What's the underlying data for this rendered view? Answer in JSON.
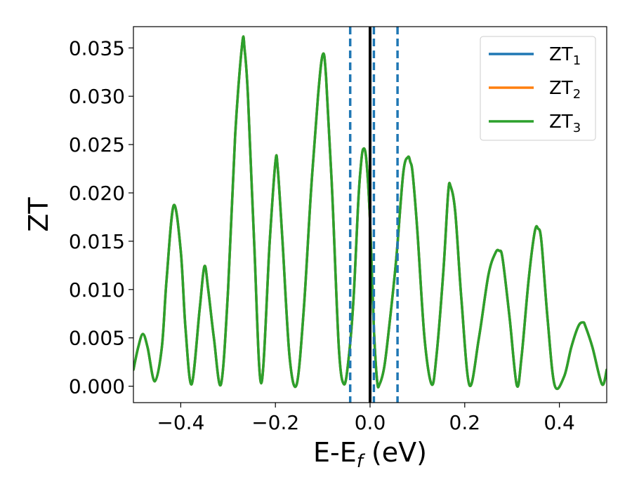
{
  "chart_data": {
    "type": "line",
    "ylabel": "ZT",
    "xlabel": {
      "main": "E-E",
      "sub": "f",
      "unit": " (eV)"
    },
    "xlim": [
      -0.5,
      0.5
    ],
    "ylim": [
      -0.0017,
      0.0372
    ],
    "x_ticks": [
      -0.4,
      -0.2,
      0.0,
      0.2,
      0.4
    ],
    "x_tick_labels": [
      "−0.4",
      "−0.2",
      "0.0",
      "0.2",
      "0.4"
    ],
    "y_ticks": [
      0.0,
      0.005,
      0.01,
      0.015,
      0.02,
      0.025,
      0.03,
      0.035
    ],
    "y_tick_labels": [
      "0.000",
      "0.005",
      "0.010",
      "0.015",
      "0.020",
      "0.025",
      "0.030",
      "0.035"
    ],
    "grid": false,
    "legend_position": "top-right",
    "series": [
      {
        "label_main": "ZT",
        "label_sub": "1",
        "color": "#1f77b4"
      },
      {
        "label_main": "ZT",
        "label_sub": "2",
        "color": "#ff7f0e"
      },
      {
        "label_main": "ZT",
        "label_sub": "3",
        "color": "#2ca02c"
      }
    ],
    "curve_points": {
      "x": [
        -0.5,
        -0.49,
        -0.48,
        -0.47,
        -0.455,
        -0.44,
        -0.43,
        -0.415,
        -0.4,
        -0.39,
        -0.377,
        -0.36,
        -0.35,
        -0.342,
        -0.33,
        -0.315,
        -0.3,
        -0.285,
        -0.27,
        -0.265,
        -0.258,
        -0.245,
        -0.23,
        -0.212,
        -0.2,
        -0.195,
        -0.185,
        -0.17,
        -0.155,
        -0.14,
        -0.125,
        -0.11,
        -0.1,
        -0.093,
        -0.08,
        -0.066,
        -0.055,
        -0.045,
        -0.035,
        -0.025,
        -0.02,
        -0.015,
        -0.008,
        0.0,
        0.008,
        0.015,
        0.02,
        0.03,
        0.04,
        0.055,
        0.07,
        0.08,
        0.085,
        0.09,
        0.1,
        0.115,
        0.13,
        0.14,
        0.155,
        0.165,
        0.17,
        0.18,
        0.193,
        0.21,
        0.23,
        0.25,
        0.265,
        0.273,
        0.28,
        0.295,
        0.31,
        0.32,
        0.335,
        0.348,
        0.355,
        0.362,
        0.375,
        0.39,
        0.41,
        0.425,
        0.44,
        0.45,
        0.455,
        0.47,
        0.49,
        0.5
      ],
      "y": [
        0.0017,
        0.004,
        0.0054,
        0.004,
        0.0005,
        0.004,
        0.011,
        0.0187,
        0.014,
        0.006,
        0.0002,
        0.008,
        0.0124,
        0.01,
        0.005,
        0.0002,
        0.01,
        0.026,
        0.0355,
        0.0348,
        0.03,
        0.015,
        0.0003,
        0.015,
        0.0232,
        0.0225,
        0.015,
        0.003,
        0.0002,
        0.008,
        0.02,
        0.03,
        0.0343,
        0.032,
        0.02,
        0.004,
        0.0002,
        0.003,
        0.009,
        0.019,
        0.0225,
        0.0245,
        0.0235,
        0.017,
        0.006,
        0.0005,
        0.0002,
        0.002,
        0.006,
        0.013,
        0.022,
        0.0237,
        0.0232,
        0.022,
        0.016,
        0.005,
        0.0002,
        0.003,
        0.012,
        0.02,
        0.0207,
        0.018,
        0.009,
        0.0001,
        0.005,
        0.0115,
        0.0138,
        0.014,
        0.0132,
        0.007,
        0.0001,
        0.003,
        0.011,
        0.016,
        0.0163,
        0.015,
        0.007,
        0.0001,
        0.001,
        0.004,
        0.0062,
        0.0066,
        0.0062,
        0.004,
        0.0002,
        0.0017
      ]
    },
    "vertical_lines": [
      {
        "x": -0.042,
        "style": "dashed",
        "color": "#1f77b4"
      },
      {
        "x": 0.008,
        "style": "dashed",
        "color": "#1f77b4"
      },
      {
        "x": 0.058,
        "style": "dashed",
        "color": "#1f77b4"
      },
      {
        "x": 0.0,
        "style": "solid",
        "color": "#000000"
      }
    ]
  }
}
